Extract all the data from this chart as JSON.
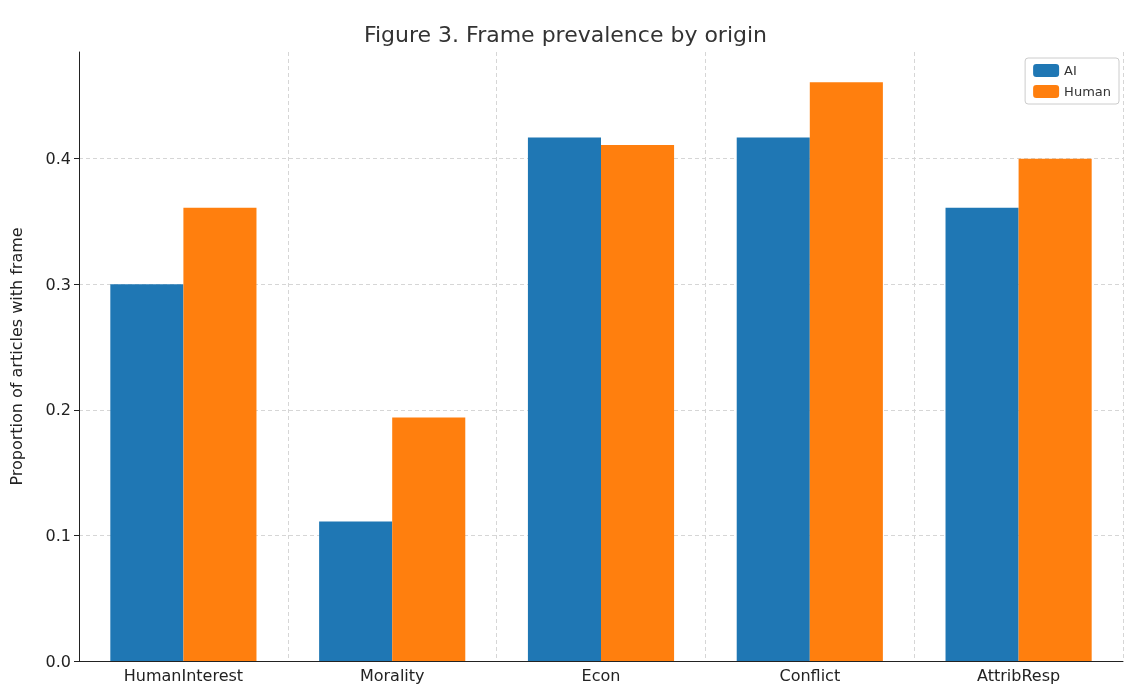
{
  "chart_data": {
    "type": "bar",
    "title": "Figure 3. Frame prevalence by origin",
    "ylabel": "Proportion of articles with frame",
    "categories": [
      "HumanInterest",
      "Morality",
      "Econ",
      "Conflict",
      "AttribResp"
    ],
    "series": [
      {
        "name": "AI",
        "color": "#1f77b4",
        "values": [
          0.3,
          0.111,
          0.417,
          0.417,
          0.361
        ]
      },
      {
        "name": "Human",
        "color": "#ff7f0e",
        "values": [
          0.361,
          0.194,
          0.411,
          0.461,
          0.4
        ]
      }
    ],
    "ylim": [
      0,
      0.485
    ],
    "yticks": [
      {
        "value": 0,
        "label": "0.0"
      },
      0.1,
      0.2,
      0.3,
      0.4
    ],
    "grid": true,
    "legend": "top right"
  }
}
